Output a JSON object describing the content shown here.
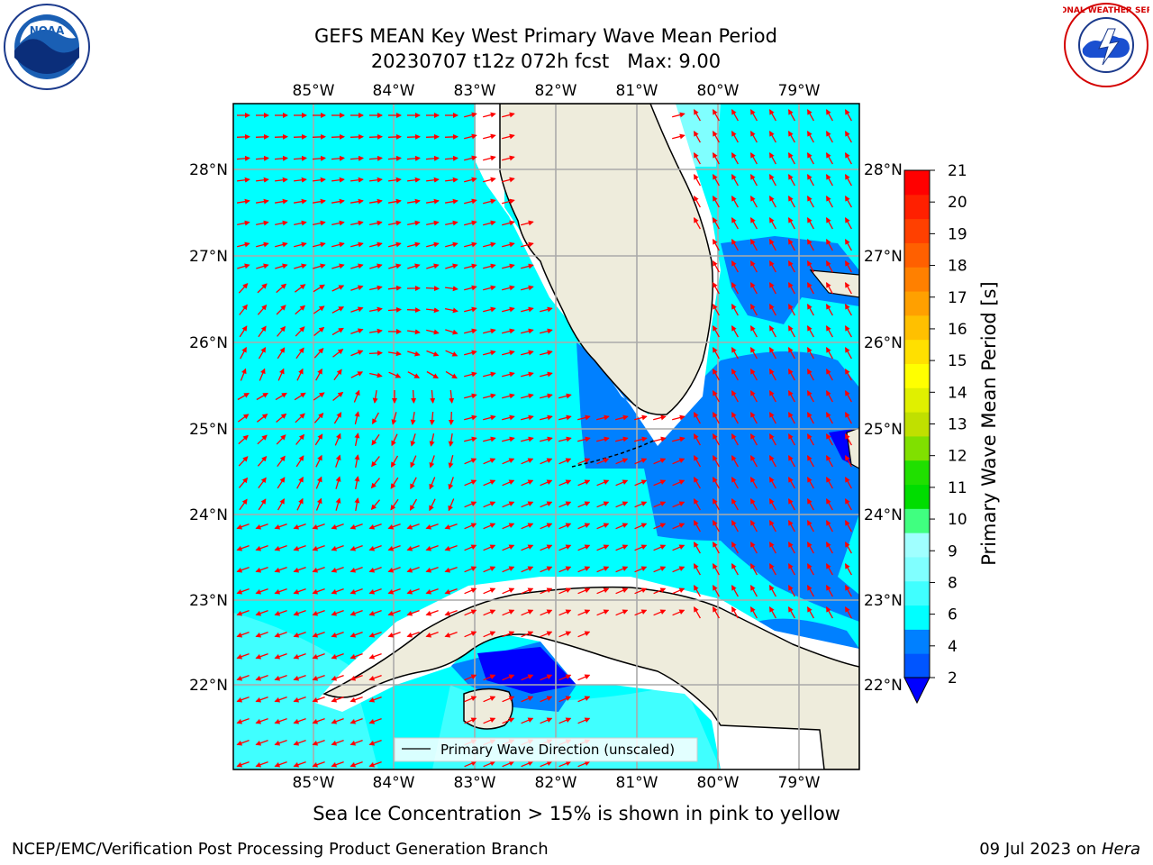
{
  "title": {
    "line1": "GEFS MEAN Key West Primary Wave Mean Period",
    "line2": "20230707 t12z 072h fcst   Max: 9.00"
  },
  "map": {
    "lon_labels": [
      "85°W",
      "84°W",
      "83°W",
      "82°W",
      "81°W",
      "80°W",
      "79°W"
    ],
    "lat_labels": [
      "28°N",
      "27°N",
      "26°N",
      "25°N",
      "24°N",
      "23°N",
      "22°N"
    ],
    "legend_label": "Primary Wave Direction (unscaled)",
    "arrow_color": "#ff0000",
    "land_color": "#eeecdc",
    "ocean_color": "#00ffff"
  },
  "colorbar": {
    "label": "Primary Wave Mean Period [s]",
    "ticks": [
      "21",
      "20",
      "19",
      "18",
      "17",
      "16",
      "15",
      "14",
      "13",
      "12",
      "11",
      "10",
      "9",
      "8",
      "6",
      "4",
      "2"
    ],
    "colors": [
      "#0055ff",
      "#0080ff",
      "#00ffff",
      "#40ffff",
      "#80ffff",
      "#a0ffff",
      "#40ff80",
      "#00dd00",
      "#20e000",
      "#80e000",
      "#c0e000",
      "#e0f000",
      "#ffff00",
      "#ffe000",
      "#ffc000",
      "#ffa000",
      "#ff8000",
      "#ff6000",
      "#ff4000",
      "#ff2000",
      "#ff0000"
    ]
  },
  "caption": "Sea Ice Concentration > 15% is shown in pink to yellow",
  "footer": {
    "left": "NCEP/EMC/Verification Post Processing Product Generation Branch",
    "right_date": "09 Jul 2023 on ",
    "right_host": "Hera"
  },
  "logos": {
    "noaa_text": "NOAA",
    "nws_text": "NATIONAL WEATHER SERVICE"
  }
}
